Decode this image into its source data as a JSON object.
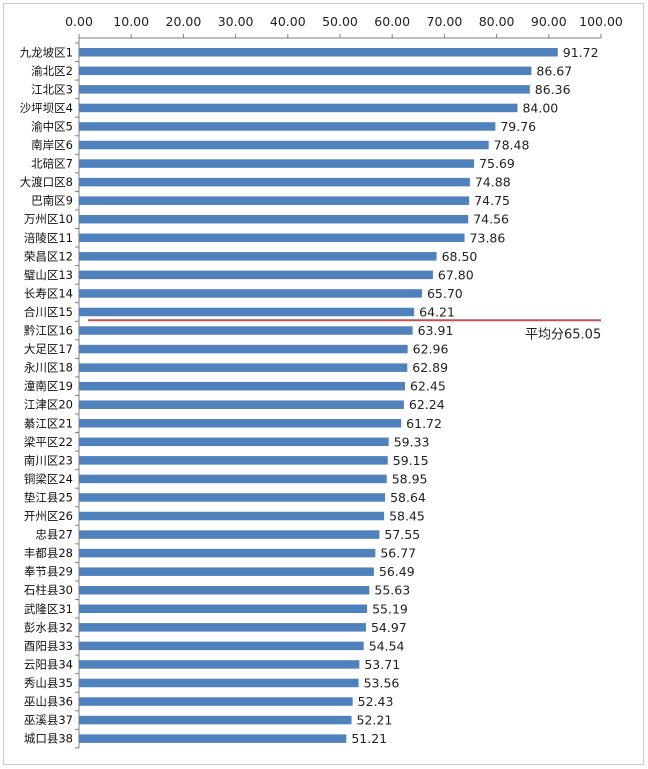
{
  "chart_data": {
    "type": "bar",
    "orientation": "horizontal",
    "title": "",
    "xlabel": "",
    "ylabel": "",
    "xlim": [
      0,
      100
    ],
    "x_ticks": [
      "0.00",
      "10.00",
      "20.00",
      "30.00",
      "40.00",
      "50.00",
      "60.00",
      "70.00",
      "80.00",
      "90.00",
      "100.00"
    ],
    "x_axis_position": "top",
    "grid": false,
    "legend": "none",
    "bar_color": "#4f81bd",
    "categories": [
      "九龙坡区1",
      "渝北区2",
      "江北区3",
      "沙坪坝区4",
      "渝中区5",
      "南岸区6",
      "北碚区7",
      "大渡口区8",
      "巴南区9",
      "万州区10",
      "涪陵区11",
      "荣昌区12",
      "璧山区13",
      "长寿区14",
      "合川区15",
      "黔江区16",
      "大足区17",
      "永川区18",
      "潼南区19",
      "江津区20",
      "綦江区21",
      "梁平区22",
      "南川区23",
      "铜梁区24",
      "垫江县25",
      "开州区26",
      "忠县27",
      "丰都县28",
      "奉节县29",
      "石柱县30",
      "武隆区31",
      "彭水县32",
      "酉阳县33",
      "云阳县34",
      "秀山县35",
      "巫山县36",
      "巫溪县37",
      "城口县38"
    ],
    "values": [
      91.72,
      86.67,
      86.36,
      84.0,
      79.76,
      78.48,
      75.69,
      74.88,
      74.75,
      74.56,
      73.86,
      68.5,
      67.8,
      65.7,
      64.21,
      63.91,
      62.96,
      62.89,
      62.45,
      62.24,
      61.72,
      59.33,
      59.15,
      58.95,
      58.64,
      58.45,
      57.55,
      56.77,
      56.49,
      55.63,
      55.19,
      54.97,
      54.54,
      53.71,
      53.56,
      52.43,
      52.21,
      51.21
    ],
    "value_labels": [
      "91.72",
      "86.67",
      "86.36",
      "84.00",
      "79.76",
      "78.48",
      "75.69",
      "74.88",
      "74.75",
      "74.56",
      "73.86",
      "68.50",
      "67.80",
      "65.70",
      "64.21",
      "63.91",
      "62.96",
      "62.89",
      "62.45",
      "62.24",
      "61.72",
      "59.33",
      "59.15",
      "58.95",
      "58.64",
      "58.45",
      "57.55",
      "56.77",
      "56.49",
      "55.63",
      "55.19",
      "54.97",
      "54.54",
      "53.71",
      "53.56",
      "52.43",
      "52.21",
      "51.21"
    ],
    "reference_line": {
      "label": "平均分65.05",
      "color": "#c0504d"
    }
  }
}
